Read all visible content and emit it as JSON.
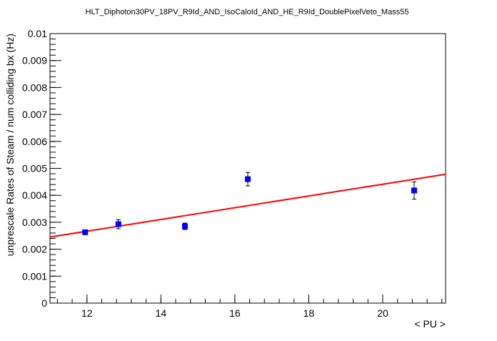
{
  "chart_data": {
    "type": "scatter",
    "title": "HLT_Diphoton30PV_18PV_R9Id_AND_IsoCaloId_AND_HE_R9Id_DoublePixelVeto_Mass55",
    "xlabel": "< PU >",
    "ylabel": "unprescale Rates of Steam / num colliding bx (Hz)",
    "xlim": [
      11.0,
      21.7
    ],
    "ylim": [
      0,
      0.01
    ],
    "x_ticks": [
      {
        "value": 12,
        "label": "12"
      },
      {
        "value": 14,
        "label": "14"
      },
      {
        "value": 16,
        "label": "16"
      },
      {
        "value": 18,
        "label": "18"
      },
      {
        "value": 20,
        "label": "20"
      }
    ],
    "y_ticks": [
      {
        "value": 0,
        "label": "0"
      },
      {
        "value": 0.001,
        "label": "0.001"
      },
      {
        "value": 0.002,
        "label": "0.002"
      },
      {
        "value": 0.003,
        "label": "0.003"
      },
      {
        "value": 0.004,
        "label": "0.004"
      },
      {
        "value": 0.005,
        "label": "0.005"
      },
      {
        "value": 0.006,
        "label": "0.006"
      },
      {
        "value": 0.007,
        "label": "0.007"
      },
      {
        "value": 0.008,
        "label": "0.008"
      },
      {
        "value": 0.009,
        "label": "0.009"
      },
      {
        "value": 0.01,
        "label": "0.01"
      }
    ],
    "grid": false,
    "series": [
      {
        "type": "scatter",
        "color": "#0000ff",
        "points": [
          {
            "x": 11.95,
            "y": 0.00263,
            "err": 8e-05
          },
          {
            "x": 12.85,
            "y": 0.00293,
            "err": 0.00017
          },
          {
            "x": 14.65,
            "y": 0.00285,
            "err": 0.00012
          },
          {
            "x": 16.35,
            "y": 0.0046,
            "err": 0.00025
          },
          {
            "x": 20.85,
            "y": 0.00418,
            "err": 0.00032
          }
        ]
      },
      {
        "type": "line",
        "color": "#ff0000",
        "points": [
          {
            "x": 11.0,
            "y": 0.00245
          },
          {
            "x": 21.7,
            "y": 0.00478
          }
        ]
      }
    ]
  }
}
